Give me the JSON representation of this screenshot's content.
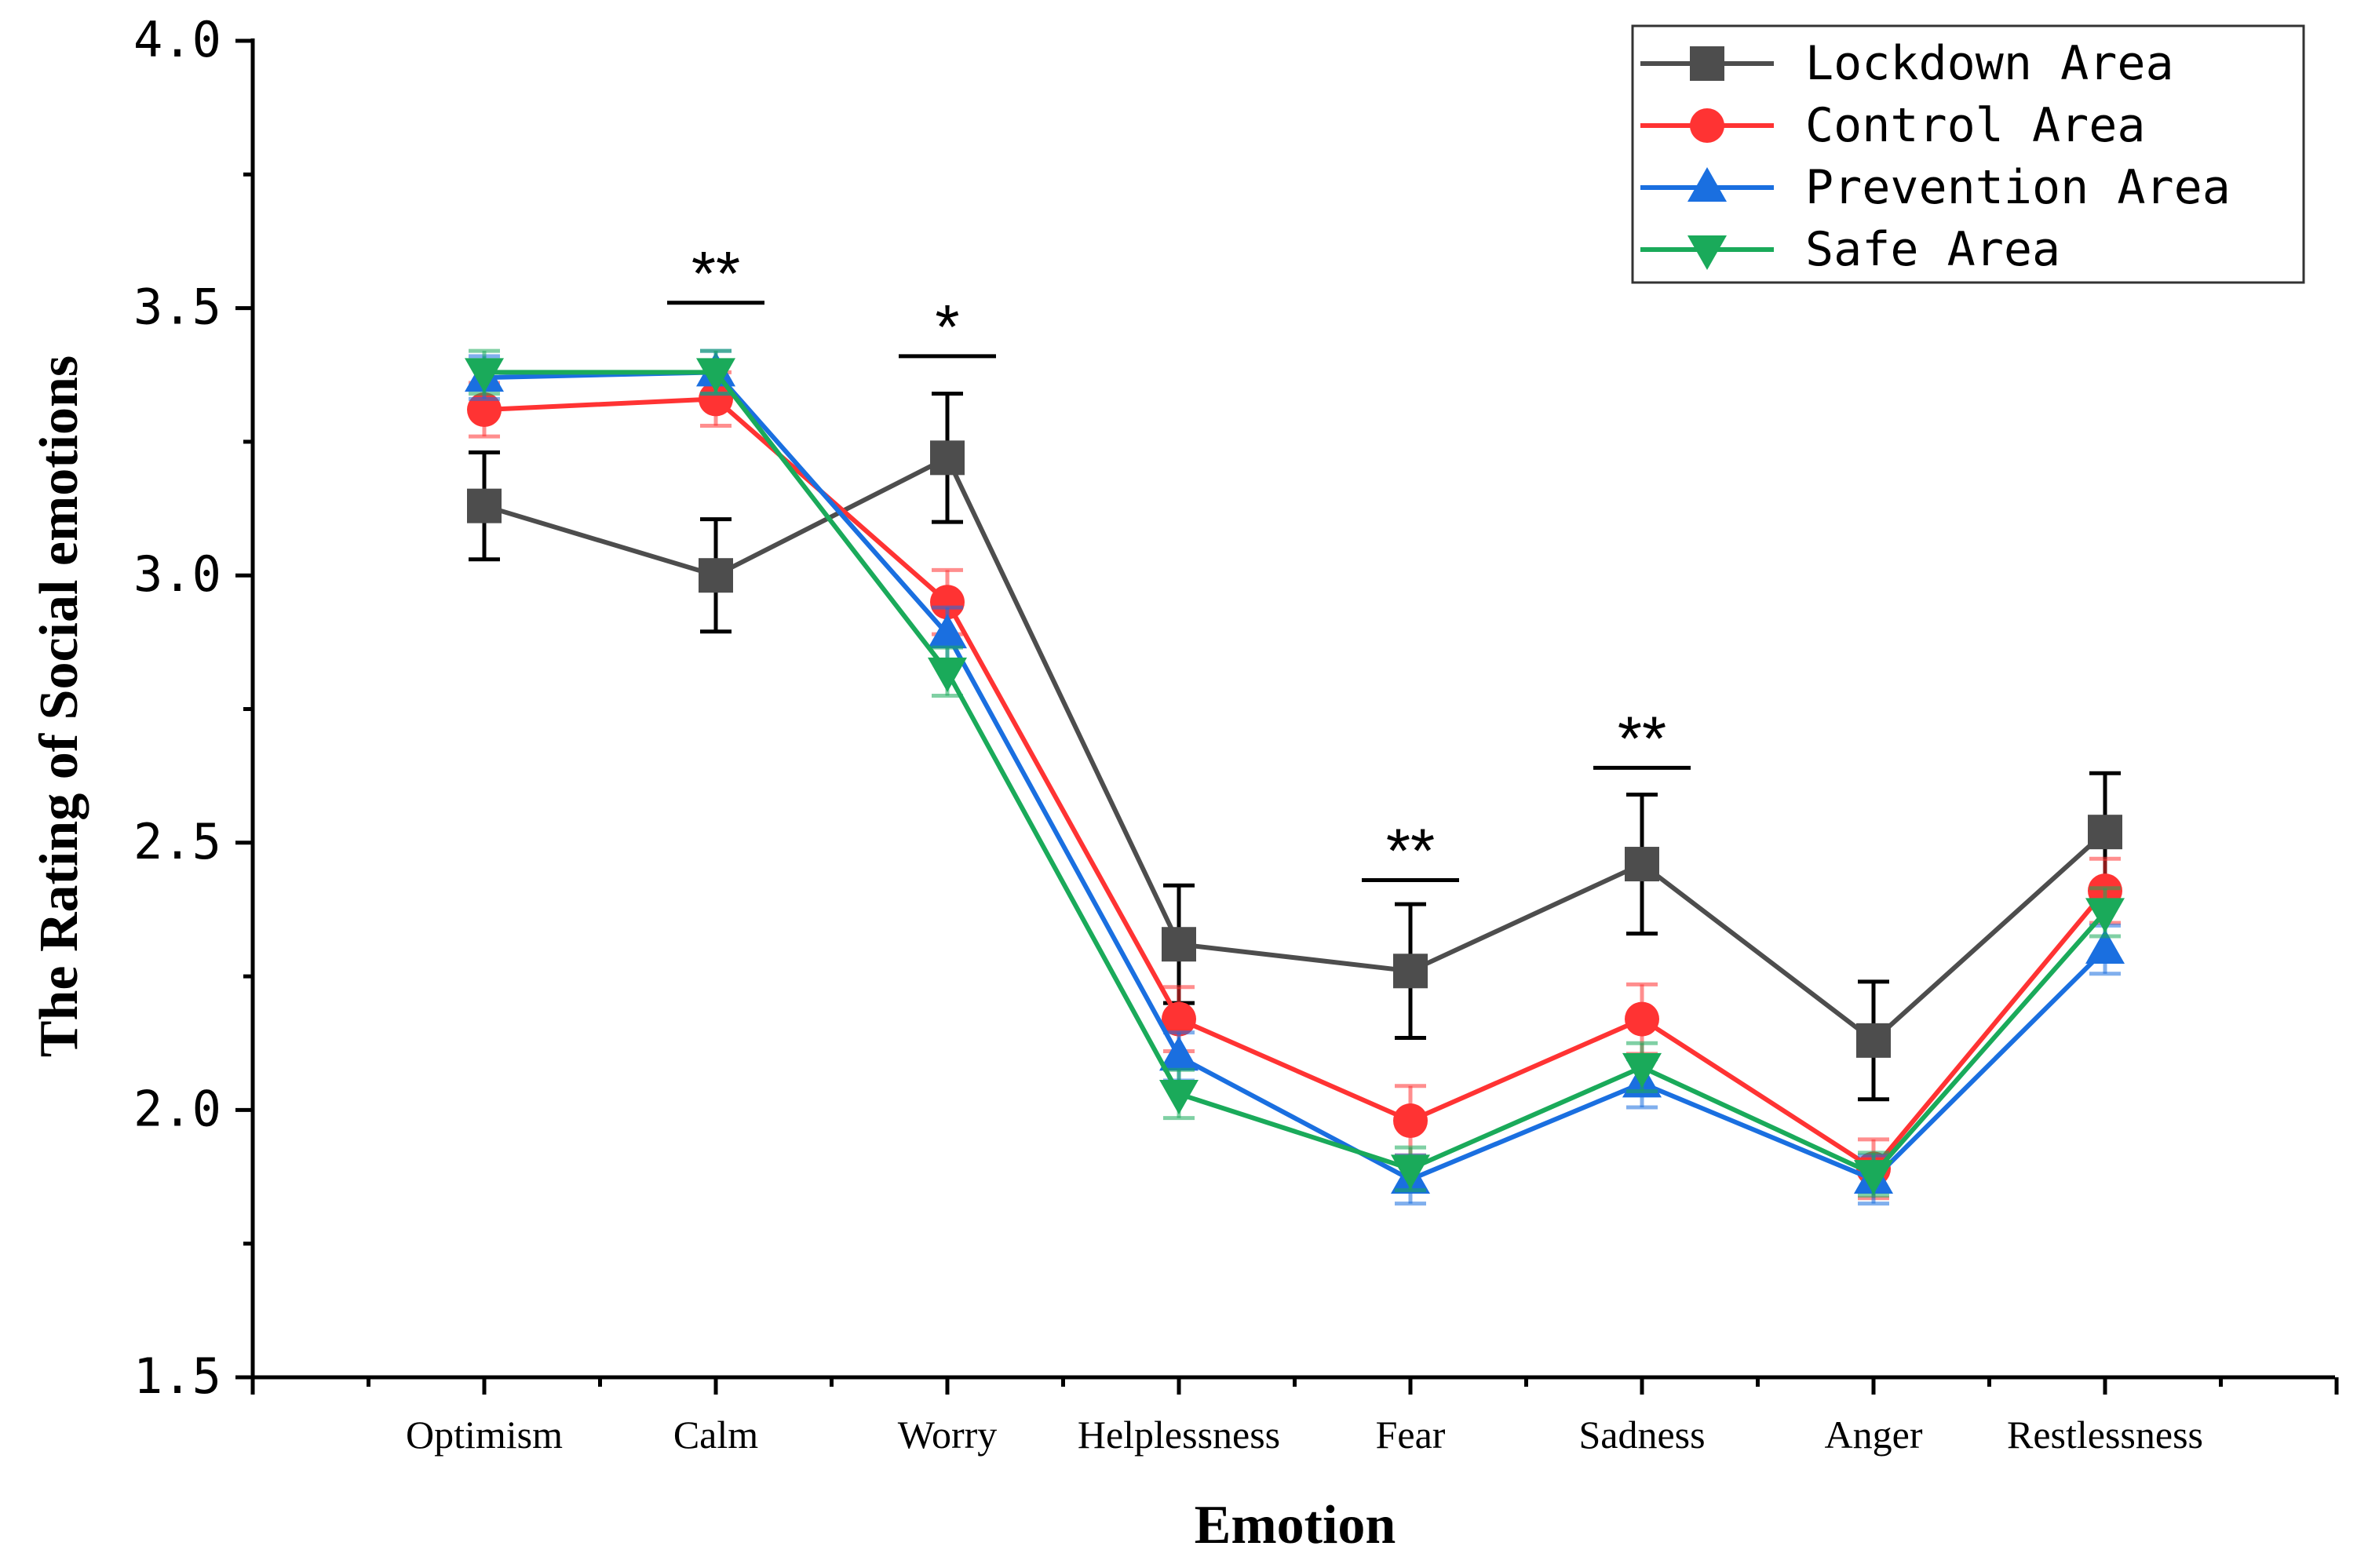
{
  "chart_data": {
    "type": "line",
    "xlabel": "Emotion",
    "ylabel": "The Rating of Social emotions",
    "ylim": [
      1.5,
      4.0
    ],
    "yticks": [
      "1.5",
      "2.0",
      "2.5",
      "3.0",
      "3.5",
      "4.0"
    ],
    "categories": [
      "Optimism",
      "Calm",
      "Worry",
      "Helplessness",
      "Fear",
      "Sadness",
      "Anger",
      "Restlessness"
    ],
    "legend_position": "top-right",
    "series": [
      {
        "name": "Lockdown Area",
        "color": "#4d4d4d",
        "marker": "square",
        "values": [
          3.13,
          3.0,
          3.22,
          2.31,
          2.26,
          2.46,
          2.13,
          2.52
        ],
        "errors": [
          0.1,
          0.105,
          0.12,
          0.11,
          0.125,
          0.13,
          0.11,
          0.11
        ]
      },
      {
        "name": "Control Area",
        "color": "#ff3333",
        "marker": "circle",
        "values": [
          3.31,
          3.33,
          2.95,
          2.17,
          1.98,
          2.17,
          1.89,
          2.41
        ],
        "errors": [
          0.05,
          0.05,
          0.06,
          0.06,
          0.065,
          0.065,
          0.055,
          0.06
        ]
      },
      {
        "name": "Prevention Area",
        "color": "#1a6fe0",
        "marker": "triangle-up",
        "values": [
          3.37,
          3.38,
          2.89,
          2.1,
          1.87,
          2.05,
          1.87,
          2.3
        ],
        "errors": [
          0.04,
          0.04,
          0.05,
          0.045,
          0.045,
          0.045,
          0.045,
          0.045
        ]
      },
      {
        "name": "Safe Area",
        "color": "#1aaa5a",
        "marker": "triangle-down",
        "values": [
          3.38,
          3.38,
          2.82,
          2.03,
          1.89,
          2.08,
          1.88,
          2.37
        ],
        "errors": [
          0.04,
          0.04,
          0.045,
          0.045,
          0.04,
          0.045,
          0.04,
          0.045
        ]
      }
    ],
    "annotations": [
      {
        "category": "Calm",
        "text": "**",
        "y": 3.51
      },
      {
        "category": "Worry",
        "text": "*",
        "y": 3.41
      },
      {
        "category": "Fear",
        "text": "**",
        "y": 2.43
      },
      {
        "category": "Sadness",
        "text": "**",
        "y": 2.64
      }
    ]
  }
}
